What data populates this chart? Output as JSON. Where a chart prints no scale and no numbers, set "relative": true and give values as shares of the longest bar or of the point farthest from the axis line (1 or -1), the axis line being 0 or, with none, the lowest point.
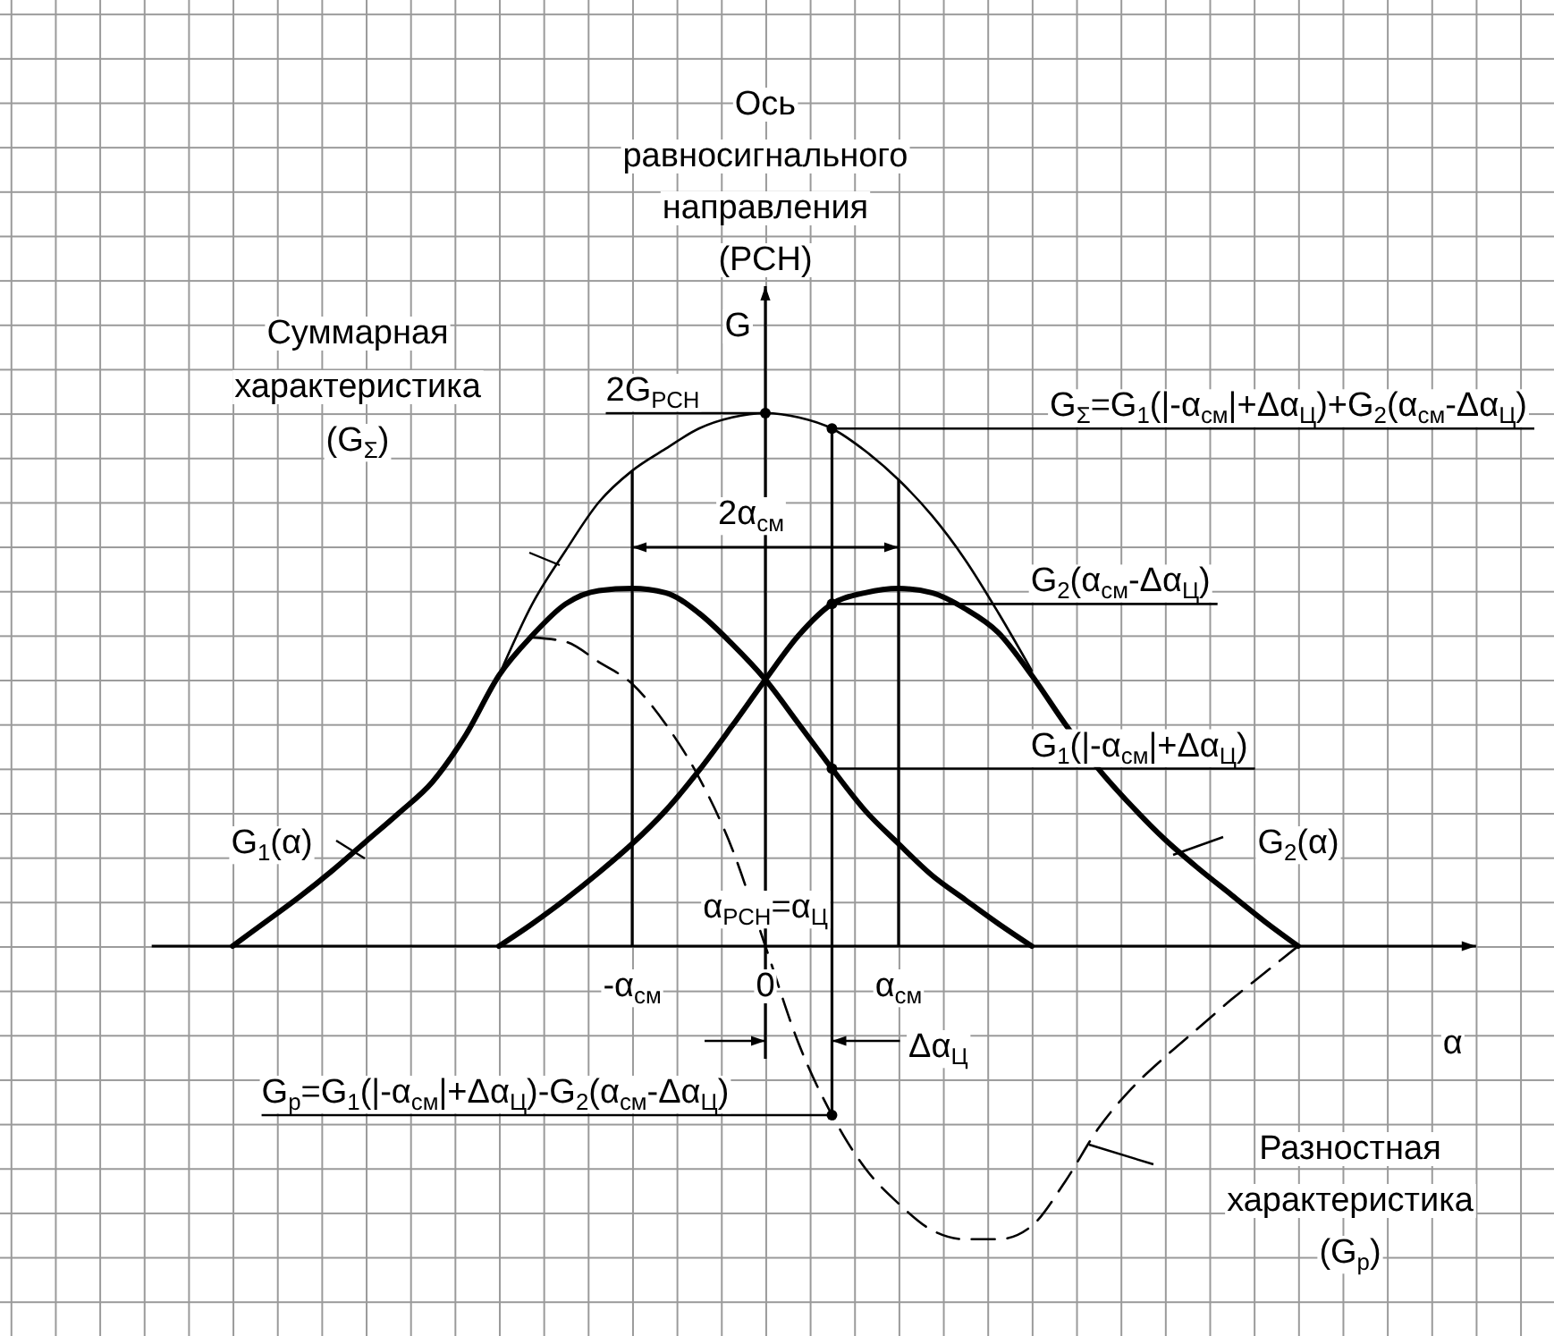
{
  "chart_data": {
    "type": "line",
    "relative": true,
    "xlabel": "α",
    "ylabel": "G",
    "categories": [
      null,
      null,
      null,
      null,
      null,
      null,
      null,
      null,
      null,
      null,
      null,
      null,
      null,
      null,
      "-α$_{см}$",
      null,
      null,
      null,
      "0",
      null,
      null,
      null,
      "α$_{см}$",
      null,
      null,
      null,
      null,
      null,
      null,
      null,
      null,
      null,
      null,
      null,
      null,
      null,
      null,
      null,
      null
    ],
    "series": [
      {
        "name": "G$_{1}$(α)",
        "color": "#000000",
        "line_style": "solid",
        "values": [
          null,
          null,
          0,
          0.046,
          0.092,
          0.142,
          0.196,
          0.25,
          0.308,
          0.396,
          0.508,
          0.583,
          0.642,
          0.667,
          0.671,
          0.663,
          0.625,
          0.567,
          0.5,
          0.417,
          0.333,
          0.254,
          0.192,
          0.133,
          0.087,
          0.042,
          0,
          null,
          null,
          null,
          null,
          null,
          null,
          null,
          null,
          null,
          null,
          null,
          null
        ]
      },
      {
        "name": "G$_{2}$(α)",
        "color": "#000000",
        "line_style": "solid",
        "values": [
          null,
          null,
          null,
          null,
          null,
          null,
          null,
          null,
          null,
          null,
          0,
          0.042,
          0.088,
          0.138,
          0.192,
          0.254,
          0.329,
          0.413,
          0.5,
          0.583,
          0.642,
          0.663,
          0.671,
          0.663,
          0.633,
          0.588,
          0.508,
          0.417,
          0.333,
          0.263,
          0.2,
          0.146,
          0.096,
          0.046,
          0,
          null,
          null,
          null,
          null
        ]
      },
      {
        "color": "#000000",
        "line_style": "solid",
        "values": [
          null,
          null,
          null,
          null,
          null,
          null,
          null,
          null,
          null,
          null,
          0.508,
          0.642,
          0.742,
          0.833,
          0.892,
          0.933,
          0.971,
          0.992,
          1,
          0.992,
          0.971,
          0.929,
          0.875,
          0.808,
          0.725,
          0.625,
          0.517,
          null,
          null,
          null,
          null,
          null,
          null,
          null,
          null,
          null,
          null,
          null,
          null
        ]
      },
      {
        "color": "#000000",
        "line_style": "dashed",
        "values": [
          null,
          null,
          null,
          null,
          null,
          null,
          null,
          null,
          null,
          null,
          null,
          0.579,
          0.571,
          0.533,
          0.492,
          0.417,
          0.317,
          0.183,
          0,
          -0.183,
          -0.317,
          -0.417,
          -0.483,
          -0.533,
          -0.55,
          -0.55,
          -0.525,
          -0.442,
          -0.342,
          -0.267,
          -0.208,
          -0.154,
          -0.1,
          -0.05,
          0,
          null,
          null,
          null,
          null
        ]
      }
    ],
    "grid": true,
    "ref_lines": [
      {
        "axis": "x",
        "value": "-α$_{см}$"
      },
      {
        "axis": "x",
        "value": "α$_{см}$"
      }
    ],
    "annotations": [
      "Ось равносигнального направления (РСН)",
      "Суммарная характеристика (G$_{Σ}$)",
      "2α$_{см}$",
      "α$_{РСН}$=α$_{Ц}$",
      "Δα$_{Ц}$",
      "Разностная характеристика (G$_{р}$)",
      "2G$_{РСН}$",
      "G$_{Σ}$=G$_{1}$(|-α$_{см}$|+Δα$_{Ц}$)+G$_{2}$(α$_{см}$-Δα$_{Ц}$)",
      "G$_{2}$(α$_{см}$-Δα$_{Ц}$)",
      "G$_{1}$(|-α$_{см}$|+Δα$_{Ц}$)",
      "G$_{р}$=G$_{1}$(|-α$_{см}$|+Δα$_{Ц}$)-G$_{2}$(α$_{см}$-Δα$_{Ц}$)"
    ]
  }
}
